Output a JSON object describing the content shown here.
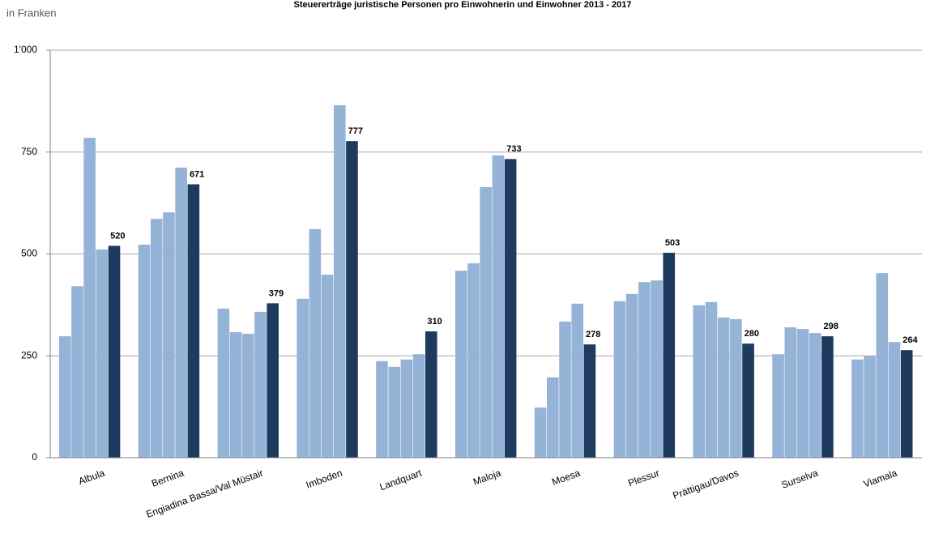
{
  "chart_data": {
    "type": "bar",
    "title": "Steuererträge juristische Personen pro Einwohnerin und Einwohner 2013 - 2017",
    "subtitle": "in Franken",
    "categories": [
      "Albula",
      "Bernina",
      "Engiadina Bassa/Val Müstair",
      "Imboden",
      "Landquart",
      "Maloja",
      "Moesa",
      "Plessur",
      "Prättigau/Davos",
      "Surselva",
      "Viamala"
    ],
    "series": [
      {
        "color": "#95b3d7",
        "values": [
          298,
          523,
          366,
          390,
          237,
          459,
          123,
          384,
          374,
          254,
          241
        ]
      },
      {
        "color": "#95b3d7",
        "values": [
          421,
          586,
          308,
          561,
          223,
          477,
          197,
          402,
          382,
          320,
          249
        ]
      },
      {
        "color": "#95b3d7",
        "values": [
          785,
          602,
          304,
          449,
          241,
          664,
          334,
          431,
          344,
          316,
          453
        ]
      },
      {
        "color": "#95b3d7",
        "values": [
          511,
          712,
          358,
          865,
          254,
          742,
          378,
          435,
          340,
          306,
          284
        ]
      },
      {
        "color": "#1f3a5f",
        "values": [
          520,
          671,
          379,
          777,
          310,
          733,
          278,
          503,
          280,
          298,
          264
        ],
        "data_labels": true
      }
    ],
    "ylim": [
      0,
      1000
    ],
    "yticks": [
      0,
      250,
      500,
      750,
      {
        "value": 1000,
        "label": "1'000"
      }
    ],
    "grid": true
  }
}
